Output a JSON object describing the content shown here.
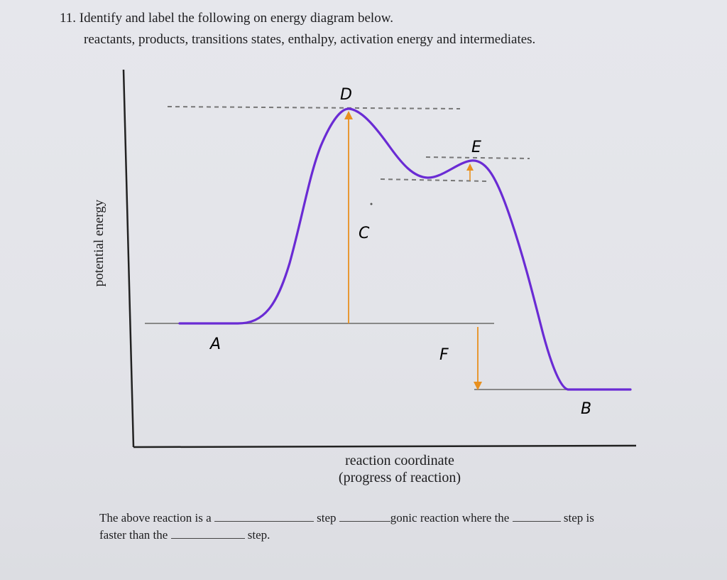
{
  "question": {
    "title": "11. Identify and label the following on energy diagram below.",
    "subtitle": "reactants, products, transitions states, enthalpy, activation energy and intermediates."
  },
  "axes": {
    "ylabel": "potential energy",
    "xlabel_line1": "reaction coordinate",
    "xlabel_line2": "(progress of reaction)"
  },
  "handwritten_labels": {
    "A": "A",
    "B": "B",
    "C": "C",
    "D": "D",
    "E": "E",
    "F": "F"
  },
  "fill_in": {
    "line1_part1": "The above reaction is a",
    "line1_part2": "step",
    "line1_part3": "gonic reaction where the",
    "line1_part4": "step is",
    "line2_part1": "faster than the",
    "line2_part2": "step."
  },
  "colors": {
    "curve": "#6a2bd4",
    "arrow": "#e8901f",
    "axis": "#222222",
    "baseline": "#888888",
    "dashed": "#777777"
  }
}
